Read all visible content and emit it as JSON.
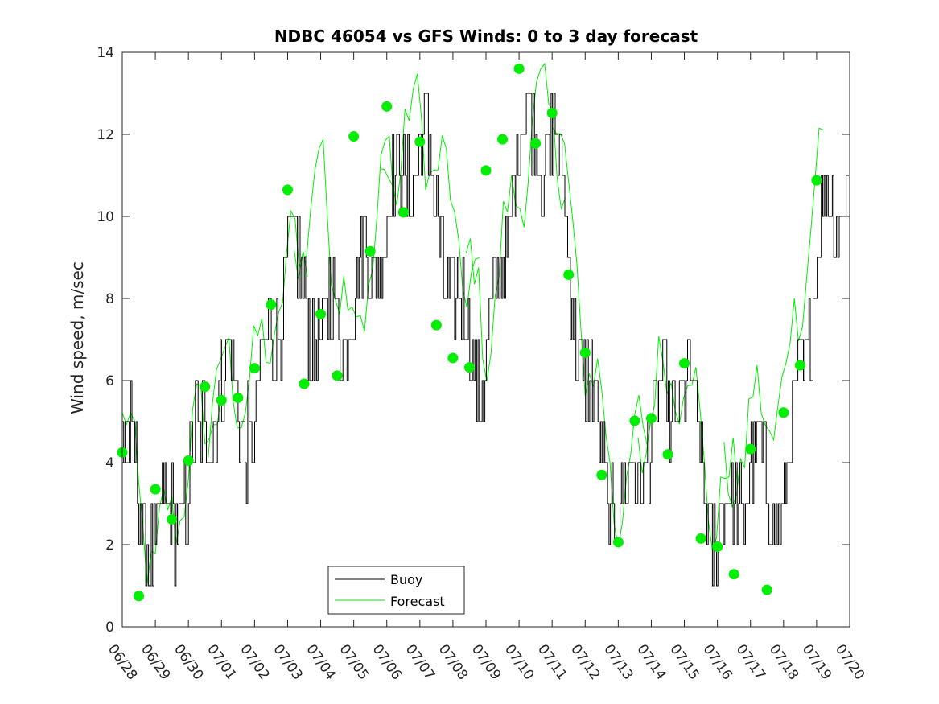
{
  "chart_data": {
    "type": "line",
    "title": "NDBC 46054 vs GFS Winds: 0 to 3 day forecast",
    "xlabel": "",
    "ylabel": "Wind speed, m/sec",
    "ylim": [
      0,
      14
    ],
    "y_ticks": [
      "0",
      "2",
      "4",
      "6",
      "8",
      "10",
      "12",
      "14"
    ],
    "x_ticks": [
      "06/28",
      "06/29",
      "06/30",
      "07/01",
      "07/02",
      "07/03",
      "07/04",
      "07/05",
      "07/06",
      "07/07",
      "07/08",
      "07/09",
      "07/10",
      "07/11",
      "07/12",
      "07/13",
      "07/14",
      "07/15",
      "07/16",
      "07/17",
      "07/18",
      "07/19",
      "07/20"
    ],
    "x_range_days": [
      0,
      22
    ],
    "grid": false,
    "legend_position": "bottom-center",
    "legend": [
      "Buoy",
      "Forecast"
    ],
    "colors": {
      "buoy": "#000000",
      "forecast": "#00ee00",
      "marker": "#00ee00"
    },
    "buoy_daily": [
      4.5,
      2.0,
      3.5,
      6.0,
      5.0,
      9.0,
      7.0,
      8.0,
      10.0,
      12.0,
      8.0,
      6.0,
      12.0,
      12.0,
      6.0,
      2.5,
      5.0,
      6.0,
      2.0,
      4.0,
      3.0,
      9.0,
      11.5
    ],
    "forecast_daily": [
      5.0,
      1.5,
      4.0,
      6.0,
      6.0,
      8.5,
      11.0,
      7.0,
      11.0,
      12.5,
      10.0,
      7.0,
      11.0,
      13.0,
      7.0,
      3.0,
      5.5,
      6.5,
      2.5,
      5.0,
      5.5,
      11.0,
      11.5
    ],
    "forecast_markers": [
      {
        "x": 0.0,
        "y": 4.25
      },
      {
        "x": 0.5,
        "y": 0.75
      },
      {
        "x": 1.0,
        "y": 3.35
      },
      {
        "x": 1.5,
        "y": 2.62
      },
      {
        "x": 2.0,
        "y": 4.05
      },
      {
        "x": 2.5,
        "y": 5.85
      },
      {
        "x": 3.0,
        "y": 5.52
      },
      {
        "x": 3.5,
        "y": 5.58
      },
      {
        "x": 4.0,
        "y": 6.3
      },
      {
        "x": 4.5,
        "y": 7.85
      },
      {
        "x": 5.0,
        "y": 10.65
      },
      {
        "x": 5.5,
        "y": 5.92
      },
      {
        "x": 6.0,
        "y": 7.62
      },
      {
        "x": 6.5,
        "y": 6.12
      },
      {
        "x": 7.0,
        "y": 11.95
      },
      {
        "x": 7.5,
        "y": 9.15
      },
      {
        "x": 8.0,
        "y": 12.68
      },
      {
        "x": 8.5,
        "y": 10.1
      },
      {
        "x": 9.0,
        "y": 11.82
      },
      {
        "x": 9.5,
        "y": 7.35
      },
      {
        "x": 10.0,
        "y": 6.55
      },
      {
        "x": 10.5,
        "y": 6.32
      },
      {
        "x": 11.0,
        "y": 11.12
      },
      {
        "x": 11.5,
        "y": 11.88
      },
      {
        "x": 12.0,
        "y": 13.6
      },
      {
        "x": 12.5,
        "y": 11.78
      },
      {
        "x": 13.0,
        "y": 12.52
      },
      {
        "x": 13.5,
        "y": 8.58
      },
      {
        "x": 14.0,
        "y": 6.68
      },
      {
        "x": 14.5,
        "y": 3.7
      },
      {
        "x": 15.0,
        "y": 2.06
      },
      {
        "x": 15.5,
        "y": 5.02
      },
      {
        "x": 16.0,
        "y": 5.08
      },
      {
        "x": 16.5,
        "y": 4.2
      },
      {
        "x": 17.0,
        "y": 6.42
      },
      {
        "x": 17.5,
        "y": 2.15
      },
      {
        "x": 18.0,
        "y": 1.95
      },
      {
        "x": 18.5,
        "y": 1.28
      },
      {
        "x": 19.0,
        "y": 4.33
      },
      {
        "x": 19.5,
        "y": 0.9
      },
      {
        "x": 20.0,
        "y": 5.22
      },
      {
        "x": 20.5,
        "y": 6.37
      },
      {
        "x": 21.0,
        "y": 10.88
      }
    ]
  }
}
